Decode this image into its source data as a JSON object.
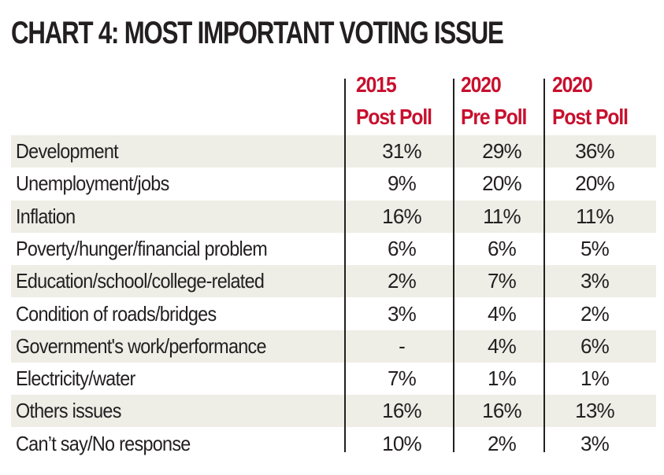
{
  "chart_data": {
    "type": "table",
    "title": "CHART 4: MOST IMPORTANT VOTING ISSUE",
    "columns": [
      {
        "year": "2015",
        "label": "Post Poll"
      },
      {
        "year": "2020",
        "label": "Pre Poll"
      },
      {
        "year": "2020",
        "label": "Post Poll"
      }
    ],
    "rows": [
      {
        "issue": "Development",
        "values": [
          "31%",
          "29%",
          "36%"
        ]
      },
      {
        "issue": "Unemployment/jobs",
        "values": [
          "9%",
          "20%",
          "20%"
        ]
      },
      {
        "issue": "Inflation",
        "values": [
          "16%",
          "11%",
          "11%"
        ]
      },
      {
        "issue": "Poverty/hunger/financial problem",
        "values": [
          "6%",
          "6%",
          "5%"
        ]
      },
      {
        "issue": "Education/school/college-related",
        "values": [
          "2%",
          "7%",
          "3%"
        ]
      },
      {
        "issue": "Condition of roads/bridges",
        "values": [
          "3%",
          "4%",
          "2%"
        ]
      },
      {
        "issue": "Government's work/performance",
        "values": [
          "-",
          "4%",
          "6%"
        ]
      },
      {
        "issue": "Electricity/water",
        "values": [
          "7%",
          "1%",
          "1%"
        ]
      },
      {
        "issue": "Others issues",
        "values": [
          "16%",
          "16%",
          "13%"
        ]
      },
      {
        "issue": "Can’t say/No response",
        "values": [
          "10%",
          "2%",
          "3%"
        ]
      }
    ],
    "colors": {
      "header": "#c8102e",
      "text": "#231f20",
      "stripe": "#eeede6"
    }
  }
}
